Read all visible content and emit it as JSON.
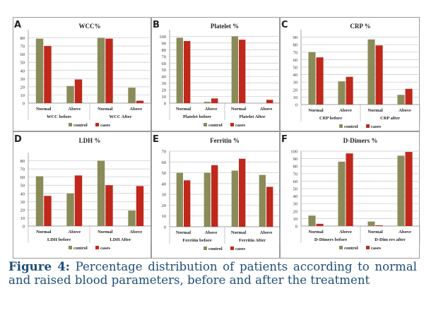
{
  "figure": {
    "caption_label": "Figure 4:",
    "caption_text": "Percentage distribution of patients according to normal and raised blood parameters, before and after the treatment"
  },
  "colors": {
    "control": "#8b8b5a",
    "cases": "#c0281c",
    "grid": "#c8c8c8",
    "axis": "#808080"
  },
  "chart_data": [
    {
      "type": "bar",
      "panel": "A",
      "title": "WCC%",
      "ylim": [
        0,
        90
      ],
      "yticks": [
        0,
        10,
        20,
        30,
        40,
        50,
        60,
        70,
        80
      ],
      "categories": [
        "Normal",
        "Above",
        "Normal",
        "Above"
      ],
      "groups": [
        "WCC before",
        "WCC After"
      ],
      "series": [
        {
          "name": "control",
          "values": [
            79,
            21,
            80,
            19
          ]
        },
        {
          "name": "cases",
          "values": [
            70,
            29,
            79,
            3
          ]
        }
      ],
      "legend": "bottom"
    },
    {
      "type": "bar",
      "panel": "B",
      "title": "Platelet %",
      "ylim": [
        0,
        110
      ],
      "yticks": [
        0,
        10,
        20,
        30,
        40,
        50,
        60,
        70,
        80,
        90,
        100
      ],
      "categories": [
        "Normal",
        "Above",
        "Normal",
        "Above"
      ],
      "groups": [
        "Platelet before",
        "Platelet After"
      ],
      "series": [
        {
          "name": "control",
          "values": [
            98,
            2,
            100,
            0
          ]
        },
        {
          "name": "cases",
          "values": [
            93,
            7,
            95,
            5
          ]
        }
      ],
      "legend": "bottom"
    },
    {
      "type": "bar",
      "panel": "C",
      "title": "CRP %",
      "ylim": [
        0,
        100
      ],
      "yticks": [
        0,
        10,
        20,
        30,
        40,
        50,
        60,
        70,
        80,
        90
      ],
      "categories": [
        "Normal",
        "Above",
        "Normal",
        "Above"
      ],
      "groups": [
        "CRP before",
        "CRP after"
      ],
      "series": [
        {
          "name": "control",
          "values": [
            70,
            31,
            87,
            13
          ]
        },
        {
          "name": "cases",
          "values": [
            63,
            37,
            79,
            21
          ]
        }
      ],
      "legend": "bottom"
    },
    {
      "type": "bar",
      "panel": "D",
      "title": "LDH %",
      "ylim": [
        0,
        90
      ],
      "yticks": [
        0,
        10,
        20,
        30,
        40,
        50,
        60,
        70,
        80
      ],
      "categories": [
        "Normal",
        "Above",
        "Normal",
        "Above"
      ],
      "groups": [
        "LDH before",
        "LDH After"
      ],
      "series": [
        {
          "name": "control",
          "values": [
            61,
            40,
            80,
            19
          ]
        },
        {
          "name": "cases",
          "values": [
            37,
            62,
            50,
            49
          ]
        }
      ],
      "legend": "bottom"
    },
    {
      "type": "bar",
      "panel": "E",
      "title": "Ferritin %",
      "ylim": [
        0,
        70
      ],
      "yticks": [
        0,
        10,
        20,
        30,
        40,
        50,
        60,
        70
      ],
      "categories": [
        "Normal",
        "Above",
        "Normal",
        "Above"
      ],
      "groups": [
        "Ferritin before",
        "Ferritin After"
      ],
      "series": [
        {
          "name": "control",
          "values": [
            50,
            50,
            52,
            48
          ]
        },
        {
          "name": "cases",
          "values": [
            43,
            57,
            63,
            37
          ]
        }
      ],
      "legend": "bottom"
    },
    {
      "type": "bar",
      "panel": "F",
      "title": "D-Dimers %",
      "ylim": [
        0,
        100
      ],
      "yticks": [
        0,
        10,
        20,
        30,
        40,
        50,
        60,
        70,
        80,
        90,
        100
      ],
      "categories": [
        "Normal",
        "Above",
        "Normal",
        "Above"
      ],
      "groups": [
        "D-Dimers before",
        "D-Dim ers after"
      ],
      "series": [
        {
          "name": "control",
          "values": [
            14,
            86,
            6,
            94
          ]
        },
        {
          "name": "cases",
          "values": [
            3,
            97,
            1,
            99
          ]
        }
      ],
      "legend": "bottom"
    }
  ]
}
